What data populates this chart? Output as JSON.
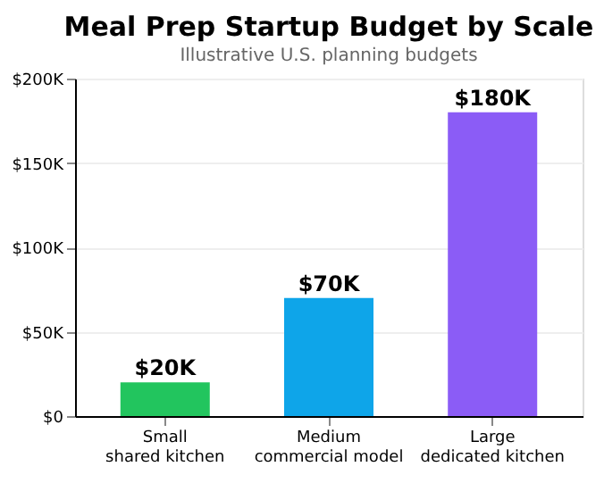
{
  "chart_data": {
    "type": "bar",
    "title": "Meal Prep Startup Budget by Scale",
    "subtitle": "Illustrative U.S. planning budgets",
    "categories": [
      "Small\nshared kitchen",
      "Medium\ncommercial model",
      "Large\ndedicated kitchen"
    ],
    "values": [
      20000,
      70000,
      180000
    ],
    "colors": [
      "#22c55e",
      "#0ea5e9",
      "#8b5cf6"
    ],
    "value_labels": [
      "$20K",
      "$70K",
      "$180K"
    ],
    "ylim": [
      0,
      200000
    ],
    "yticks": [
      {
        "value": 0,
        "label": "$0"
      },
      {
        "value": 50000,
        "label": "$50K"
      },
      {
        "value": 100000,
        "label": "$100K"
      },
      {
        "value": 150000,
        "label": "$150K"
      },
      {
        "value": 200000,
        "label": "$200K"
      }
    ],
    "grid": "y"
  }
}
